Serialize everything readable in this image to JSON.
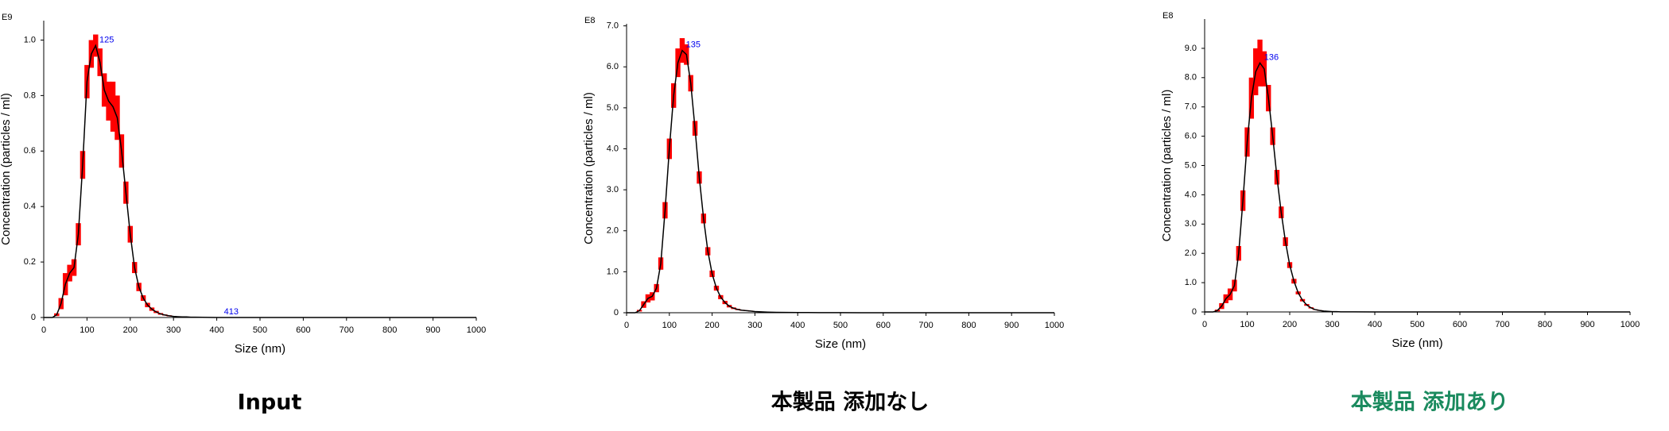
{
  "chart_data": [
    {
      "type": "line",
      "caption": "Input",
      "caption_color": "#000000",
      "exponent": "E9",
      "xlabel": "Size (nm)",
      "ylabel": "Concentration (particles / ml)",
      "x": [
        0,
        10,
        20,
        30,
        40,
        50,
        60,
        70,
        80,
        90,
        100,
        110,
        120,
        130,
        140,
        150,
        160,
        170,
        180,
        190,
        200,
        210,
        220,
        230,
        240,
        250,
        260,
        270,
        280,
        290,
        300,
        310,
        320,
        330,
        340,
        350,
        400,
        450,
        500,
        550,
        600,
        650,
        700,
        750,
        800,
        850,
        900,
        950,
        1000
      ],
      "values": [
        0,
        0,
        0,
        0.01,
        0.05,
        0.12,
        0.16,
        0.18,
        0.3,
        0.55,
        0.85,
        0.95,
        0.98,
        0.92,
        0.82,
        0.78,
        0.76,
        0.72,
        0.6,
        0.45,
        0.3,
        0.18,
        0.11,
        0.07,
        0.045,
        0.03,
        0.02,
        0.013,
        0.009,
        0.006,
        0.004,
        0.003,
        0.002,
        0.002,
        0.001,
        0.001,
        0,
        0,
        0,
        0,
        0,
        0,
        0,
        0,
        0,
        0,
        0,
        0,
        0
      ],
      "errors": [
        0,
        0,
        0,
        0.005,
        0.02,
        0.04,
        0.03,
        0.03,
        0.04,
        0.05,
        0.06,
        0.05,
        0.04,
        0.05,
        0.06,
        0.07,
        0.09,
        0.08,
        0.06,
        0.04,
        0.03,
        0.02,
        0.015,
        0.01,
        0.008,
        0.006,
        0.004,
        0.003,
        0.002,
        0.002,
        0.001,
        0.001,
        0.001,
        0.001,
        0,
        0,
        0,
        0,
        0,
        0,
        0,
        0,
        0,
        0,
        0,
        0,
        0,
        0,
        0
      ],
      "color": "#000000",
      "error_color": "#ff0000",
      "annotations": [
        {
          "text": "125",
          "x": 125,
          "y": 0.98
        },
        {
          "text": "413",
          "x": 413,
          "y": 0
        }
      ],
      "xlim": [
        0,
        1000
      ],
      "xticks": [
        0,
        100,
        200,
        300,
        400,
        500,
        600,
        700,
        800,
        900,
        1000
      ],
      "ylim": [
        0,
        1.07
      ],
      "yticks": [
        0,
        0.2,
        0.4,
        0.6,
        0.8,
        {
          "value": 1,
          "label": "1.0"
        }
      ]
    },
    {
      "type": "line",
      "caption": "本製品 添加なし",
      "caption_color": "#000000",
      "exponent": "E8",
      "xlabel": "Size (nm)",
      "ylabel": "Concentration (particles / ml)",
      "x": [
        0,
        10,
        20,
        30,
        40,
        50,
        60,
        70,
        80,
        90,
        100,
        110,
        120,
        130,
        140,
        150,
        160,
        170,
        180,
        190,
        200,
        210,
        220,
        230,
        240,
        250,
        260,
        270,
        280,
        290,
        300,
        310,
        320,
        330,
        340,
        350,
        400,
        450,
        500,
        550,
        600,
        650,
        700,
        750,
        800,
        850,
        900,
        950,
        1000
      ],
      "values": [
        0,
        0,
        0,
        0.05,
        0.2,
        0.35,
        0.4,
        0.6,
        1.2,
        2.5,
        4.0,
        5.3,
        6.1,
        6.4,
        6.3,
        5.6,
        4.5,
        3.3,
        2.3,
        1.5,
        0.95,
        0.6,
        0.38,
        0.25,
        0.16,
        0.11,
        0.08,
        0.06,
        0.05,
        0.04,
        0.03,
        0.025,
        0.02,
        0.015,
        0.012,
        0.01,
        0.005,
        0.003,
        0.002,
        0.001,
        0.001,
        0,
        0,
        0,
        0,
        0,
        0,
        0,
        0
      ],
      "errors": [
        0,
        0,
        0,
        0.02,
        0.08,
        0.1,
        0.1,
        0.1,
        0.15,
        0.2,
        0.25,
        0.3,
        0.35,
        0.3,
        0.25,
        0.2,
        0.18,
        0.15,
        0.12,
        0.1,
        0.08,
        0.06,
        0.05,
        0.04,
        0.03,
        0.02,
        0.015,
        0.01,
        0.01,
        0.01,
        0.005,
        0.005,
        0.005,
        0.005,
        0.005,
        0.005,
        0,
        0,
        0,
        0,
        0,
        0,
        0,
        0,
        0,
        0,
        0,
        0,
        0
      ],
      "color": "#000000",
      "error_color": "#ff0000",
      "annotations": [
        {
          "text": "135",
          "x": 135,
          "y": 6.4
        }
      ],
      "xlim": [
        0,
        1000
      ],
      "xticks": [
        0,
        100,
        200,
        300,
        400,
        500,
        600,
        700,
        800,
        900,
        1000
      ],
      "ylim": [
        0,
        7.05
      ],
      "yticks": [
        0,
        {
          "value": 1,
          "label": "1.0"
        },
        {
          "value": 2,
          "label": "2.0"
        },
        {
          "value": 3,
          "label": "3.0"
        },
        {
          "value": 4,
          "label": "4.0"
        },
        {
          "value": 5,
          "label": "5.0"
        },
        {
          "value": 6,
          "label": "6.0"
        },
        {
          "value": 7,
          "label": "7.0"
        }
      ]
    },
    {
      "type": "line",
      "caption": "本製品 添加あり",
      "caption_color": "#1a8a5e",
      "exponent": "E8",
      "xlabel": "Size (nm)",
      "ylabel": "Concentration (particles / ml)",
      "x": [
        0,
        10,
        20,
        30,
        40,
        50,
        60,
        70,
        80,
        90,
        100,
        110,
        120,
        130,
        140,
        150,
        160,
        170,
        180,
        190,
        200,
        210,
        220,
        230,
        240,
        250,
        260,
        270,
        280,
        290,
        300,
        310,
        320,
        330,
        340,
        350,
        400,
        450,
        500,
        550,
        600,
        650,
        700,
        750,
        800,
        850,
        900,
        950,
        1000
      ],
      "values": [
        0,
        0,
        0,
        0.05,
        0.2,
        0.45,
        0.6,
        0.9,
        2.0,
        3.8,
        5.8,
        7.3,
        8.2,
        8.5,
        8.3,
        7.3,
        6.0,
        4.6,
        3.4,
        2.4,
        1.6,
        1.05,
        0.65,
        0.4,
        0.24,
        0.14,
        0.08,
        0.05,
        0.03,
        0.02,
        0.01,
        0.01,
        0.005,
        0.005,
        0.005,
        0.005,
        0,
        0,
        0,
        0,
        0,
        0,
        0,
        0,
        0,
        0,
        0,
        0,
        0
      ],
      "errors": [
        0,
        0,
        0,
        0.03,
        0.1,
        0.15,
        0.2,
        0.2,
        0.25,
        0.35,
        0.5,
        0.7,
        0.8,
        0.8,
        0.6,
        0.45,
        0.3,
        0.25,
        0.2,
        0.15,
        0.1,
        0.08,
        0.05,
        0.04,
        0.03,
        0.02,
        0.01,
        0.01,
        0.005,
        0.005,
        0,
        0,
        0,
        0,
        0,
        0,
        0,
        0,
        0,
        0,
        0,
        0,
        0,
        0,
        0,
        0,
        0,
        0,
        0
      ],
      "color": "#000000",
      "error_color": "#ff0000",
      "annotations": [
        {
          "text": "136",
          "x": 136,
          "y": 8.5
        }
      ],
      "xlim": [
        0,
        1000
      ],
      "xticks": [
        0,
        100,
        200,
        300,
        400,
        500,
        600,
        700,
        800,
        900,
        1000
      ],
      "ylim": [
        0,
        10
      ],
      "yticks": [
        0,
        {
          "value": 1,
          "label": "1.0"
        },
        {
          "value": 2,
          "label": "2.0"
        },
        {
          "value": 3,
          "label": "3.0"
        },
        {
          "value": 4,
          "label": "4.0"
        },
        {
          "value": 5,
          "label": "5.0"
        },
        {
          "value": 6,
          "label": "6.0"
        },
        {
          "value": 7,
          "label": "7.0"
        },
        {
          "value": 8,
          "label": "8.0"
        },
        {
          "value": 9,
          "label": "9.0"
        }
      ]
    }
  ]
}
